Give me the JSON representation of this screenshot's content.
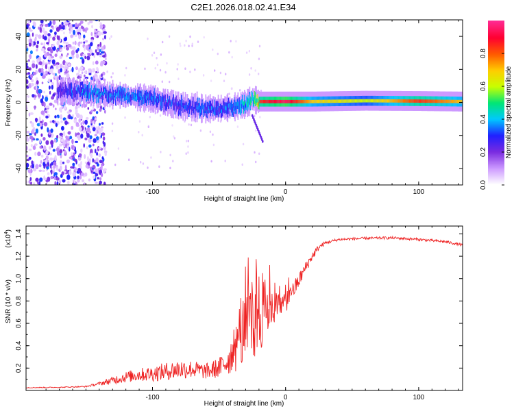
{
  "title": "C2E1.2026.018.02.41.E34",
  "colors": {
    "snr_line": "#ee2222",
    "axis": "#000000",
    "background": "#ffffff"
  },
  "chart_data": [
    {
      "type": "heatmap",
      "name": "spectrogram",
      "xlabel": "Height of straight line (km)",
      "ylabel": "Frequency (Hz)",
      "xlim": [
        -195,
        133
      ],
      "ylim": [
        -50,
        50
      ],
      "x_ticks": [
        -100,
        0,
        100
      ],
      "x_tick_labels": [
        "-100",
        "0",
        "100"
      ],
      "y_ticks": [
        -40,
        -20,
        0,
        20,
        40
      ],
      "y_tick_labels": [
        "-40",
        "-20",
        "0",
        "20",
        "40"
      ],
      "colorbar": {
        "label": "Normalized spectral amplitude",
        "range": [
          0,
          1
        ],
        "ticks": [
          0.0,
          0.2,
          0.4,
          0.6,
          0.8
        ],
        "tick_labels": [
          "0.0",
          "0.2",
          "0.4",
          "0.6",
          "0.8"
        ],
        "colormap": [
          "#ffffff",
          "#cc99ff",
          "#7a2be0",
          "#2020ff",
          "#00c8ff",
          "#00e676",
          "#c8ff00",
          "#ffcc00",
          "#ff5a00",
          "#ff0030",
          "#ff2a90"
        ]
      },
      "ridge": {
        "x": [
          -172,
          -150,
          -120,
          -100,
          -80,
          -60,
          -40,
          -30,
          -25,
          -20,
          -10,
          0,
          20,
          60,
          100,
          133
        ],
        "frequency": [
          7,
          6,
          4,
          2,
          -2,
          -4,
          -3,
          -1,
          2,
          0.5,
          0.5,
          0.5,
          0.5,
          1,
          0.8,
          0.5
        ],
        "amplitude": [
          0.3,
          0.45,
          0.42,
          0.4,
          0.38,
          0.4,
          0.4,
          0.55,
          0.6,
          0.85,
          0.9,
          0.95,
          0.7,
          0.6,
          0.85,
          0.7
        ]
      },
      "noise_region_x": [
        -195,
        -135
      ]
    },
    {
      "type": "line",
      "name": "snr",
      "xlabel": "Height of straight line (km)",
      "ylabel": "SNR (10 * v/v)",
      "y_scale_note": "(x10",
      "y_scale_exponent": "4",
      "xlim": [
        -195,
        133
      ],
      "ylim": [
        0,
        14700
      ],
      "x_ticks": [
        -100,
        0,
        100
      ],
      "x_tick_labels": [
        "-100",
        "0",
        "100"
      ],
      "y_ticks": [
        2000,
        4000,
        6000,
        8000,
        10000,
        12000,
        14000
      ],
      "y_tick_labels": [
        "0.2",
        "0.4",
        "0.6",
        "0.8",
        "1.0",
        "1.2",
        "1.4"
      ],
      "series": [
        {
          "name": "SNR",
          "color": "#ee2222",
          "x": [
            -195,
            -170,
            -150,
            -140,
            -130,
            -120,
            -110,
            -100,
            -90,
            -80,
            -70,
            -60,
            -50,
            -45,
            -40,
            -35,
            -30,
            -25,
            -20,
            -15,
            -10,
            -5,
            0,
            5,
            10,
            15,
            20,
            25,
            30,
            40,
            60,
            80,
            100,
            120,
            133
          ],
          "y": [
            250,
            280,
            350,
            600,
            900,
            1200,
            1400,
            1500,
            1700,
            1900,
            1900,
            1700,
            2000,
            2500,
            3300,
            4300,
            5200,
            6200,
            7200,
            7400,
            7300,
            7600,
            7800,
            8800,
            9800,
            11000,
            12000,
            12800,
            13200,
            13500,
            13600,
            13650,
            13500,
            13300,
            13000
          ],
          "noise_amplitude": [
            40,
            40,
            60,
            150,
            350,
            500,
            600,
            700,
            800,
            900,
            800,
            700,
            900,
            1300,
            1800,
            2600,
            3400,
            4000,
            4200,
            2500,
            1600,
            1200,
            900,
            800,
            700,
            500,
            400,
            250,
            150,
            120,
            120,
            120,
            120,
            120,
            120
          ]
        }
      ]
    }
  ]
}
